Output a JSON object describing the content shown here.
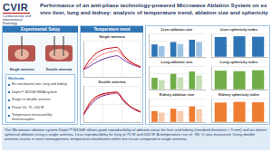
{
  "header": {
    "logo": "CVIR",
    "journal": "Cardiovascular and Interventional Radiology"
  },
  "title": "Performance of an anti-phase technology-powered Microwave Ablation System on ex vivo liver, lung and kidney: analysis of temperature trend, ablation size and sphericity",
  "setup": {
    "title": "Experimental Setup",
    "labels": [
      "Single antenna",
      "Double antenna"
    ],
    "methods_title": "Methods",
    "methods": [
      "Ex vivo bovine liver, lung and kidney",
      "Dophi™ M150E MWA system",
      "Single vs double antenna",
      "Power 50, 75, 100 W",
      "Temperature measured by thermocouples"
    ]
  },
  "temperature_panel_title": "Temperature trend",
  "chart_data": [
    {
      "type": "line",
      "title": "Single antenna",
      "x": [
        0,
        60,
        120,
        180,
        240,
        300,
        360,
        420,
        480,
        540,
        600
      ],
      "series": [
        {
          "color": "#c00000",
          "values": [
            20,
            45,
            62,
            72,
            78,
            80,
            81,
            60,
            45,
            35,
            28
          ]
        },
        {
          "color": "#ff7c80",
          "values": [
            20,
            35,
            50,
            60,
            66,
            70,
            72,
            55,
            42,
            33,
            27
          ]
        },
        {
          "color": "#7030a0",
          "values": [
            20,
            28,
            38,
            46,
            52,
            56,
            58,
            47,
            38,
            31,
            26
          ]
        }
      ],
      "xlim": [
        0,
        600
      ],
      "xticks": [
        0,
        200,
        400,
        600
      ],
      "ylim": [
        0,
        100
      ],
      "yticks": [
        0,
        50,
        100
      ],
      "grid": true,
      "tick_labels": false
    },
    {
      "type": "line",
      "title": "Double antenna",
      "x": [
        0,
        60,
        120,
        180,
        240,
        300,
        360,
        420,
        480,
        540,
        600
      ],
      "series": [
        {
          "color": "#c00000",
          "values": [
            20,
            50,
            68,
            76,
            80,
            82,
            82,
            62,
            46,
            36,
            29
          ]
        },
        {
          "color": "#ff7c80",
          "values": [
            20,
            46,
            64,
            73,
            78,
            80,
            80,
            60,
            45,
            35,
            28
          ]
        },
        {
          "color": "#7030a0",
          "values": [
            20,
            42,
            60,
            70,
            75,
            78,
            79,
            58,
            44,
            34,
            27
          ]
        }
      ],
      "xlim": [
        0,
        600
      ],
      "xticks": [
        0,
        200,
        400,
        600
      ],
      "ylim": [
        0,
        100
      ],
      "yticks": [
        0,
        50,
        100
      ],
      "grid": true,
      "tick_labels": false
    },
    {
      "type": "bar",
      "title": "Liver ablation size",
      "categories": [
        null,
        null,
        null
      ],
      "series": [
        {
          "color": "#2e75b6",
          "values": [
            32,
            38,
            44
          ]
        },
        {
          "color": "#9dc3e6",
          "values": [
            28,
            33,
            38
          ]
        }
      ],
      "ylim": [
        0,
        60
      ],
      "yticks": [
        0,
        20,
        40,
        60
      ],
      "grid": true,
      "tick_labels": false
    },
    {
      "type": "bar",
      "title": "Liver sphericity index",
      "categories": [
        null,
        null,
        null
      ],
      "series": [
        {
          "color": "#2e75b6",
          "values": [
            0.85,
            0.88,
            0.86
          ]
        }
      ],
      "ylim": [
        0,
        1
      ],
      "yticks": [
        0,
        0.5,
        1
      ],
      "grid": true,
      "tick_labels": false
    },
    {
      "type": "bar",
      "title": "Lung ablation size",
      "categories": [
        null,
        null,
        null
      ],
      "series": [
        {
          "color": "#70ad47",
          "values": [
            30,
            40,
            46
          ]
        },
        {
          "color": "#c5e0b4",
          "values": [
            24,
            31,
            36
          ]
        }
      ],
      "ylim": [
        0,
        60
      ],
      "yticks": [
        0,
        20,
        40,
        60
      ],
      "grid": true,
      "tick_labels": false
    },
    {
      "type": "bar",
      "title": "Lung sphericity index",
      "categories": [
        null,
        null,
        null
      ],
      "series": [
        {
          "color": "#70ad47",
          "values": [
            0.8,
            0.78,
            0.82
          ]
        }
      ],
      "ylim": [
        0,
        1
      ],
      "yticks": [
        0,
        0.5,
        1
      ],
      "grid": true,
      "tick_labels": false
    },
    {
      "type": "bar",
      "title": "Kidney ablation size",
      "categories": [
        null,
        null,
        null
      ],
      "series": [
        {
          "color": "#ed7d31",
          "values": [
            28,
            34,
            40
          ]
        },
        {
          "color": "#f8cbad",
          "values": [
            24,
            28,
            33
          ]
        }
      ],
      "ylim": [
        0,
        60
      ],
      "yticks": [
        0,
        20,
        40,
        60
      ],
      "grid": true,
      "tick_labels": false
    },
    {
      "type": "bar",
      "title": "Kidney sphericity index",
      "categories": [
        null,
        null,
        null
      ],
      "series": [
        {
          "color": "#ed7d31",
          "values": [
            0.83,
            0.86,
            0.84
          ]
        }
      ],
      "ylim": [
        0,
        1
      ],
      "yticks": [
        0,
        0.5,
        1
      ],
      "grid": true,
      "tick_labels": false
    }
  ],
  "conclusion": "The Microwave ablation system Dophi™ M150E allows good reproducibility of ablation areas for liver and kidney (standard deviation < 5 mm) and an almost spherical ablation using a single antenna. Less reproducibility for lung at 75 W and 100 W. A temperature rise of ~80 °C was measured. Using double antenna results in more homogeneous temperature distribution within the tissue compared to single antenna."
}
